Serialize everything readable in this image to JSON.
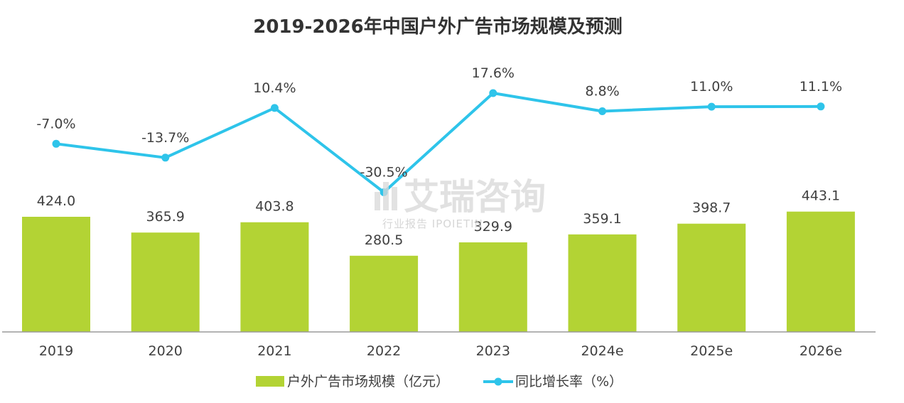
{
  "chart_data": {
    "type": "bar",
    "title": "2019-2026年中国户外广告市场规模及预测",
    "categories": [
      "2019",
      "2020",
      "2021",
      "2022",
      "2023",
      "2024e",
      "2025e",
      "2026e"
    ],
    "series": [
      {
        "name": "户外广告市场规模（亿元）",
        "type": "bar",
        "values": [
          424.0,
          365.9,
          403.8,
          280.5,
          329.9,
          359.1,
          398.7,
          443.1
        ],
        "labels": [
          "424.0",
          "365.9",
          "403.8",
          "280.5",
          "329.9",
          "359.1",
          "398.7",
          "443.1"
        ],
        "color": "#b3d334"
      },
      {
        "name": "同比增长率（%）",
        "type": "line",
        "values": [
          -7.0,
          -13.7,
          10.4,
          -30.5,
          17.6,
          8.8,
          11.0,
          11.1
        ],
        "labels": [
          "-7.0%",
          "-13.7%",
          "10.4%",
          "-30.5%",
          "17.6%",
          "8.8%",
          "11.0%",
          "11.1%"
        ],
        "color": "#2ec4ea"
      }
    ],
    "legend_position": "bottom",
    "grid": false
  },
  "watermark": {
    "main": "艾瑞咨询",
    "sub": "行业报告 IPOIETIN"
  }
}
